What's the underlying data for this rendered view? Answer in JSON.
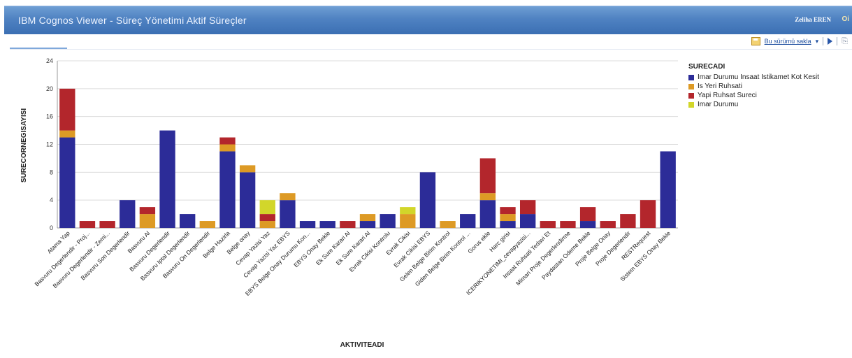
{
  "window": {
    "title": "IBM Cognos Viewer - Süreç Yönetimi Aktif Süreçler",
    "user": "Zeliha EREN",
    "more": "Oi"
  },
  "toolbar": {
    "save_label": "Bu sürümü sakla",
    "save_icon": "save-version-icon",
    "run_icon": "run-icon",
    "attach_icon": "attach-icon"
  },
  "colors": {
    "imar_kesit": "#2c2c98",
    "is_yeri": "#dd9a25",
    "yapi": "#b3262c",
    "imar_durumu": "#d2d62a"
  },
  "chart_data": {
    "type": "bar",
    "stacked": true,
    "ylabel": "SURECORNEGISAYISI",
    "xlabel": "AKTIVITEADI",
    "ylim": [
      0,
      24
    ],
    "yticks": [
      0,
      4,
      8,
      12,
      16,
      20,
      24
    ],
    "grid": true,
    "legend_title": "SURECADI",
    "legend_position": "right",
    "categories": [
      "Atama Yap",
      "Basvuru Degerlendir - Proj...",
      "Basvuru Degerlendir - Zemi...",
      "Basvuru Son Degerlendir",
      "Basvuru Al",
      "Basvuru Degerlendir",
      "Basvuru Iptal Degerlendir",
      "Basvuru On Degerlendir",
      "Belge Hazirla",
      "Belge onay",
      "Cevap Yazisi Yaz",
      "Cevap Yazisi Yaz EBYS",
      "EBYS Belge Onay Durumu Kon...",
      "EBYS Onay Bekle",
      "Ek Sure Karari Al",
      "Ek Sure Karari Al",
      "Evrak Cikisi Kontrolu",
      "Evrak Cikisi",
      "Evrak Cikisi EBYS",
      "Gelen Belge Birim Kontrol",
      "Giden Belge Birim Kontrol ...",
      "Gorus ekle",
      "Harc girisi",
      "ICERIKYONETIMI_cevapyazisi...",
      "Insaat Ruhsati Tedavi Et",
      "Mimari Proje Degerlendirme",
      "Paydastan Odeme Bekle",
      "Proje Belge Onay",
      "Proje Degerlendir",
      "RESTRequest",
      "Sistem EBYS Onay Bekle"
    ],
    "series": [
      {
        "name": "Imar Durumu Insaat Istikamet Kot Kesit",
        "color": "#2c2c98",
        "values": [
          13,
          0,
          0,
          4,
          0,
          14,
          2,
          0,
          11,
          8,
          0,
          4,
          1,
          1,
          0,
          1,
          2,
          0,
          8,
          0,
          2,
          4,
          1,
          2,
          0,
          0,
          1,
          0,
          0,
          0,
          11
        ]
      },
      {
        "name": "Is Yeri Ruhsati",
        "color": "#dd9a25",
        "values": [
          1,
          0,
          0,
          0,
          2,
          0,
          0,
          1,
          1,
          1,
          1,
          1,
          0,
          0,
          0,
          1,
          0,
          2,
          0,
          1,
          0,
          1,
          1,
          0,
          0,
          0,
          0,
          0,
          0,
          0,
          0
        ]
      },
      {
        "name": "Yapi Ruhsat Sureci",
        "color": "#b3262c",
        "values": [
          6,
          1,
          1,
          0,
          1,
          0,
          0,
          0,
          1,
          0,
          1,
          0,
          0,
          0,
          1,
          0,
          0,
          0,
          0,
          0,
          0,
          5,
          1,
          2,
          1,
          1,
          2,
          1,
          2,
          4,
          0
        ]
      },
      {
        "name": "Imar Durumu",
        "color": "#d2d62a",
        "values": [
          0,
          0,
          0,
          0,
          0,
          0,
          0,
          0,
          0,
          0,
          2,
          0,
          0,
          0,
          0,
          0,
          0,
          1,
          0,
          0,
          0,
          0,
          0,
          0,
          0,
          0,
          0,
          0,
          0,
          0,
          0
        ]
      }
    ]
  }
}
